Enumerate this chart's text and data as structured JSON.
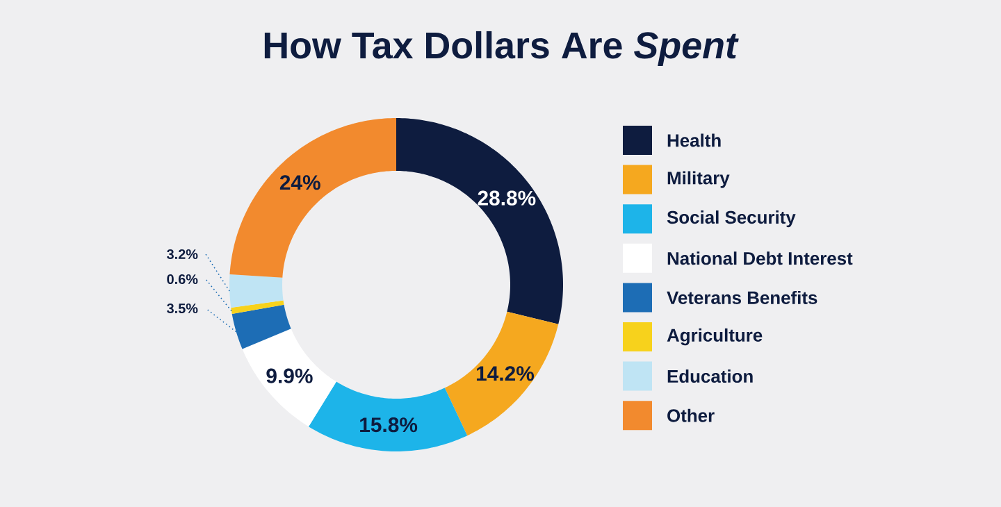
{
  "chart_data": {
    "type": "donut",
    "title": "How Tax Dollars Are *Spent*",
    "categories": [
      "Health",
      "Military",
      "Social Security",
      "National Debt Interest",
      "Veterans Benefits",
      "Agriculture",
      "Education",
      "Other"
    ],
    "values": [
      28.8,
      14.2,
      15.8,
      9.9,
      3.5,
      0.6,
      3.2,
      24
    ],
    "colors": [
      "#0e1c3f",
      "#f5a81f",
      "#1db4e9",
      "#ffffff",
      "#1d6db5",
      "#f7d21c",
      "#bfe4f4",
      "#f28a2e"
    ],
    "value_labels": [
      "28.8%",
      "14.2%",
      "15.8%",
      "9.9%",
      "3.5%",
      "0.6%",
      "3.2%",
      "24%"
    ],
    "legend": "right"
  }
}
